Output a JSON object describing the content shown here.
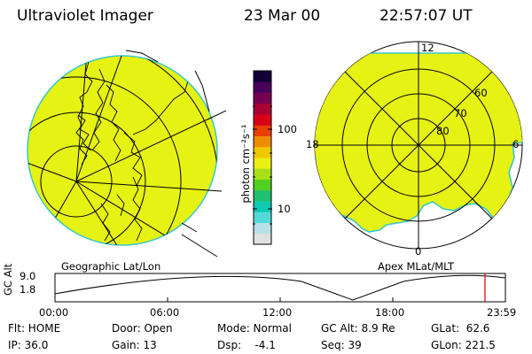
{
  "header": {
    "instrument": "Ultraviolet Imager",
    "date": "23 Mar 00",
    "time": "22:57:07 UT"
  },
  "left_panel": {
    "caption": "Geographic Lat/Lon",
    "fill_color": "#e6f213",
    "edge_color": "#37c8c8"
  },
  "right_panel": {
    "caption": "Apex MLat/MLT",
    "lat_labels": [
      "60",
      "70",
      "80"
    ],
    "mlt_labels": {
      "top": "12",
      "right": "6",
      "bottom": "0",
      "left": "18"
    }
  },
  "colorbar": {
    "unit": "photon cm⁻²s⁻¹",
    "tick_labels": [
      "100",
      "10"
    ],
    "colors": [
      "#e0e0e0",
      "#b8e0e8",
      "#54d9d9",
      "#10c8b4",
      "#20c070",
      "#50d020",
      "#a8e018",
      "#e8f014",
      "#f0c800",
      "#f08c00",
      "#e84000",
      "#d80018",
      "#a80030",
      "#780050",
      "#48005a",
      "#100038"
    ]
  },
  "timeline": {
    "axis_label": "GC Alt",
    "y_ticks": [
      "9.0",
      "1.8"
    ],
    "x_ticks": [
      "00:00",
      "06:00",
      "12:00",
      "18:00",
      "23:59"
    ],
    "marker_color": "#cc0000"
  },
  "footer": {
    "filter": "Flt: HOME",
    "ip": "IP: 36.0",
    "door": "Door: Open",
    "gain": "Gain: 13",
    "mode": "Mode: Normal",
    "dsp": "Dsp:    -4.1",
    "gc_alt": "GC Alt: 8.9 Re",
    "seq": "Seq: 39",
    "glat": "GLat:  62.6",
    "glon": "GLon: 221.5"
  }
}
